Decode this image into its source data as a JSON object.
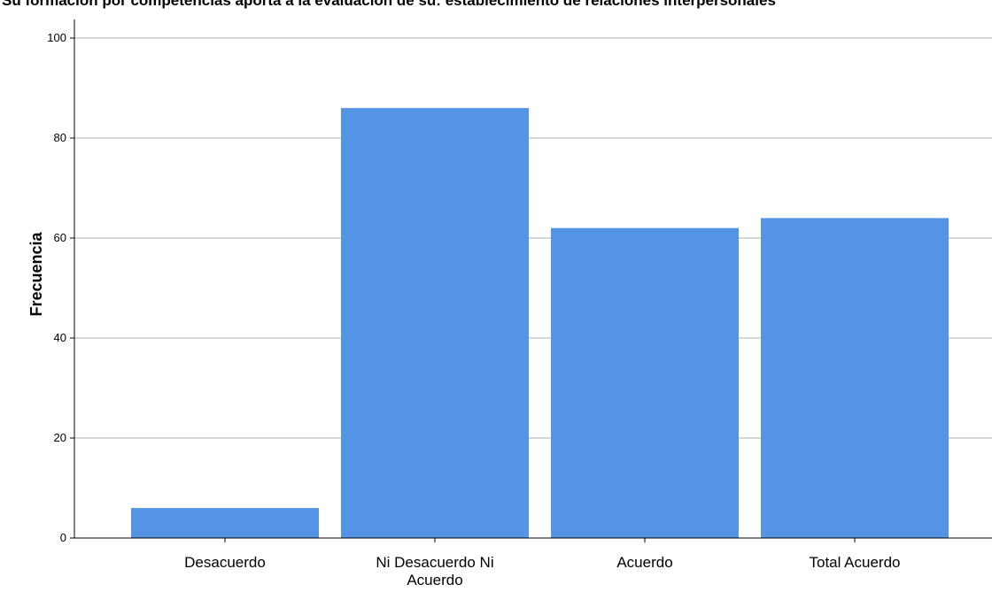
{
  "chart_data": {
    "type": "bar",
    "title": "Su formación por competencias aporta a la evaluación de su: establecimiento de relaciones interpersonales",
    "xlabel": "",
    "ylabel": "Frecuencia",
    "categories": [
      [
        "Desacuerdo"
      ],
      [
        "Ni Desacuerdo Ni",
        "Acuerdo"
      ],
      [
        "Acuerdo"
      ],
      [
        "Total Acuerdo"
      ]
    ],
    "values": [
      6,
      86,
      62,
      64
    ],
    "ylim": [
      0,
      100
    ],
    "yticks": [
      "0",
      "20",
      "40",
      "60",
      "80",
      "100"
    ],
    "grid": true,
    "bar_color": "#5494e4",
    "legend": "none"
  }
}
